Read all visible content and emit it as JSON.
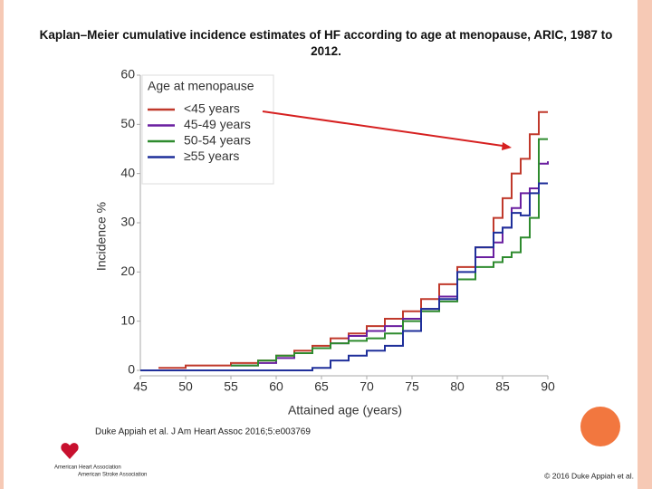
{
  "chart_data": {
    "type": "line",
    "step": true,
    "title": "Kaplan–Meier cumulative incidence estimates of HF according to age at menopause, ARIC, 1987 to 2012.",
    "xlabel": "Attained age (years)",
    "ylabel": "Incidence %",
    "legend_title": "Age at menopause",
    "legend": "upper left",
    "x": [
      45,
      47,
      50,
      55,
      58,
      60,
      62,
      64,
      66,
      68,
      70,
      72,
      74,
      76,
      78,
      80,
      82,
      84,
      85,
      86,
      87,
      88,
      89,
      90
    ],
    "series": [
      {
        "name": "<45 years",
        "color": "#c0392b",
        "values": [
          null,
          0.5,
          1,
          1.5,
          2,
          3,
          4,
          5,
          6.5,
          7.5,
          9,
          10.5,
          12,
          14.5,
          17.5,
          21,
          25,
          31,
          35,
          40,
          43,
          48,
          52.5,
          52.5
        ]
      },
      {
        "name": "45-49 years",
        "color": "#6a1fa0",
        "values": [
          null,
          null,
          null,
          1,
          1.5,
          2.5,
          3.5,
          4.5,
          5.5,
          7,
          8,
          9,
          10.5,
          12.5,
          15,
          18.5,
          23,
          26,
          29,
          33,
          36,
          37,
          42,
          42.5
        ]
      },
      {
        "name": "50-54 years",
        "color": "#2e8b2e",
        "values": [
          null,
          null,
          null,
          1,
          2,
          3,
          3.5,
          4.5,
          5.5,
          6,
          6.5,
          7.5,
          10,
          12,
          14,
          18.5,
          21,
          22,
          23,
          24,
          27,
          31,
          47,
          47
        ]
      },
      {
        "name": "≥55 years",
        "color": "#1f2f9a",
        "values": [
          0,
          0,
          0,
          0,
          0,
          0,
          0,
          0.5,
          2,
          3,
          4,
          5,
          8,
          12.5,
          14.5,
          20,
          25,
          28,
          29,
          32,
          31.5,
          36,
          38,
          38
        ]
      }
    ],
    "xlim": [
      45,
      90
    ],
    "xticks": [
      45,
      50,
      55,
      60,
      65,
      70,
      75,
      80,
      85,
      90
    ],
    "ylim": [
      0,
      60
    ],
    "yticks": [
      0,
      10,
      20,
      30,
      40,
      50,
      60
    ],
    "citation": "Duke Appiah et al. J Am Heart Assoc 2016;5:e003769",
    "logo": [
      "American Heart Association",
      "American Stroke Association"
    ],
    "copyright": "© 2016 Duke Appiah et al."
  }
}
